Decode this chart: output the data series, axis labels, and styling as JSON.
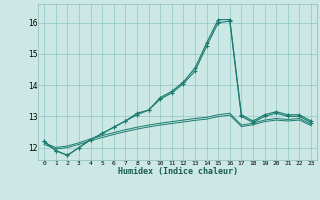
{
  "xlabel": "Humidex (Indice chaleur)",
  "background_color": "#cce8e4",
  "grid_color": "#99cccc",
  "line_color": "#1a7a6e",
  "x_data": [
    0,
    1,
    2,
    3,
    4,
    5,
    6,
    7,
    8,
    9,
    10,
    11,
    12,
    13,
    14,
    15,
    16,
    17,
    18,
    19,
    20,
    21,
    22,
    23
  ],
  "series": [
    [
      12.2,
      11.9,
      11.75,
      12.0,
      12.25,
      12.45,
      12.65,
      12.85,
      13.1,
      13.2,
      13.6,
      13.8,
      14.1,
      14.55,
      15.35,
      16.1,
      16.1,
      13.05,
      12.85,
      13.05,
      13.15,
      13.05,
      13.05,
      12.85
    ],
    [
      12.2,
      11.9,
      11.75,
      12.0,
      12.25,
      12.45,
      12.65,
      12.85,
      13.05,
      13.2,
      13.55,
      13.75,
      14.05,
      14.45,
      15.25,
      16.0,
      16.05,
      13.0,
      12.8,
      13.0,
      13.1,
      13.0,
      13.0,
      12.8
    ],
    [
      12.15,
      12.0,
      12.05,
      12.15,
      12.28,
      12.38,
      12.48,
      12.57,
      12.65,
      12.72,
      12.78,
      12.83,
      12.88,
      12.93,
      12.97,
      13.05,
      13.1,
      12.72,
      12.78,
      12.88,
      12.93,
      12.9,
      12.93,
      12.75
    ],
    [
      12.1,
      11.95,
      12.0,
      12.1,
      12.22,
      12.32,
      12.42,
      12.51,
      12.59,
      12.66,
      12.72,
      12.77,
      12.82,
      12.87,
      12.91,
      12.99,
      13.04,
      12.67,
      12.73,
      12.83,
      12.88,
      12.85,
      12.88,
      12.7
    ]
  ],
  "ylim": [
    11.6,
    16.6
  ],
  "yticks": [
    12,
    13,
    14,
    15,
    16
  ],
  "xlim": [
    -0.5,
    23.5
  ],
  "xticks": [
    0,
    1,
    2,
    3,
    4,
    5,
    6,
    7,
    8,
    9,
    10,
    11,
    12,
    13,
    14,
    15,
    16,
    17,
    18,
    19,
    20,
    21,
    22,
    23
  ],
  "xtick_labels": [
    "0",
    "1",
    "2",
    "3",
    "4",
    "5",
    "6",
    "7",
    "8",
    "9",
    "10",
    "11",
    "12",
    "13",
    "14",
    "15",
    "16",
    "17",
    "18",
    "19",
    "20",
    "21",
    "22",
    "23"
  ]
}
